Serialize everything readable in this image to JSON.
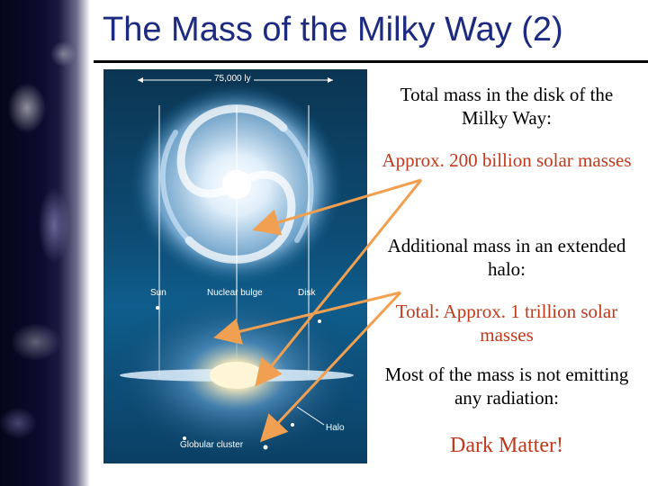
{
  "slide": {
    "title": "The Mass of the Milky Way (2)",
    "figure": {
      "scale_label": "75,000 ly",
      "sun_label": "Sun",
      "bulge_label": "Nuclear bulge",
      "disk_label": "Disk",
      "halo_label": "Halo",
      "cluster_label": "Globular cluster"
    },
    "text_blocks": [
      {
        "text": "Total mass in the disk of the Milky Way:",
        "color": "#000000"
      },
      {
        "text": "Approx. 200 billion solar masses",
        "color": "#c0391b"
      },
      {
        "text": "Additional mass in an extended halo:",
        "color": "#000000"
      },
      {
        "text": "Total: Approx. 1 trillion solar masses",
        "color": "#c0391b"
      },
      {
        "text": "Most of the mass is not emitting any radiation:",
        "color": "#000000"
      },
      {
        "text": "Dark Matter!",
        "color": "#c0391b"
      }
    ],
    "arrow_color": "#f0a050"
  }
}
